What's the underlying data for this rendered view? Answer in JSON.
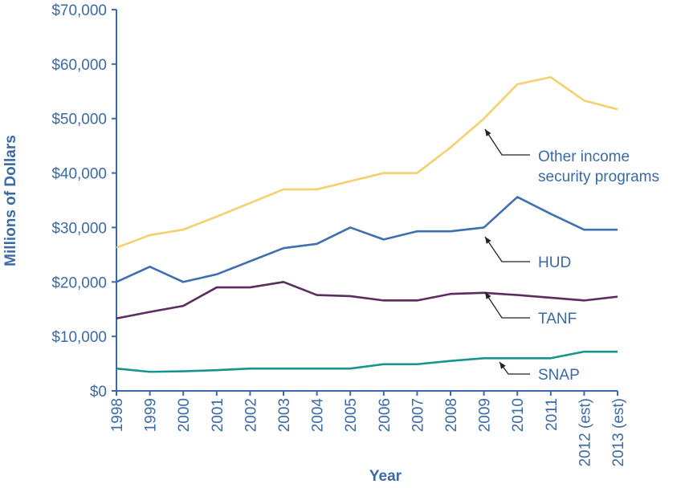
{
  "chart_data": {
    "type": "line",
    "xlabel": "Year",
    "ylabel": "Millions of Dollars",
    "ylim": [
      0,
      70000
    ],
    "yticks": [
      "$0",
      "$10,000",
      "$20,000",
      "$30,000",
      "$40,000",
      "$50,000",
      "$60,000",
      "$70,000"
    ],
    "categories": [
      "1998",
      "1999",
      "2000",
      "2001",
      "2002",
      "2003",
      "2004",
      "2005",
      "2006",
      "2007",
      "2008",
      "2009",
      "2010",
      "2011",
      "2012 (est)",
      "2013 (est)"
    ],
    "grid": false,
    "series": [
      {
        "name": "Other income security programs",
        "label_lines": [
          "Other income",
          "security programs"
        ],
        "color": "#f6cf6f",
        "values": [
          26300,
          28600,
          29600,
          32000,
          34500,
          37000,
          37000,
          38500,
          40000,
          40000,
          44700,
          50000,
          56300,
          57600,
          53300,
          51700
        ]
      },
      {
        "name": "HUD",
        "label_lines": [
          "HUD"
        ],
        "color": "#3f6fb0",
        "values": [
          20000,
          22800,
          20000,
          21400,
          23800,
          26200,
          27000,
          30000,
          27800,
          29300,
          29300,
          30000,
          35600,
          32500,
          29600,
          29600
        ]
      },
      {
        "name": "TANF",
        "label_lines": [
          "TANF"
        ],
        "color": "#5b2c5e",
        "values": [
          13300,
          14500,
          15600,
          19000,
          19000,
          20000,
          17600,
          17400,
          16600,
          16600,
          17800,
          18000,
          17600,
          17100,
          16600,
          17300
        ]
      },
      {
        "name": "SNAP",
        "label_lines": [
          "SNAP"
        ],
        "color": "#16958f",
        "values": [
          4100,
          3500,
          3600,
          3800,
          4100,
          4100,
          4100,
          4100,
          4900,
          4900,
          5500,
          6000,
          6000,
          6000,
          7200,
          7200
        ]
      }
    ],
    "axis_color": "#3a6aa8",
    "annotation_arrow_color": "#222222"
  }
}
